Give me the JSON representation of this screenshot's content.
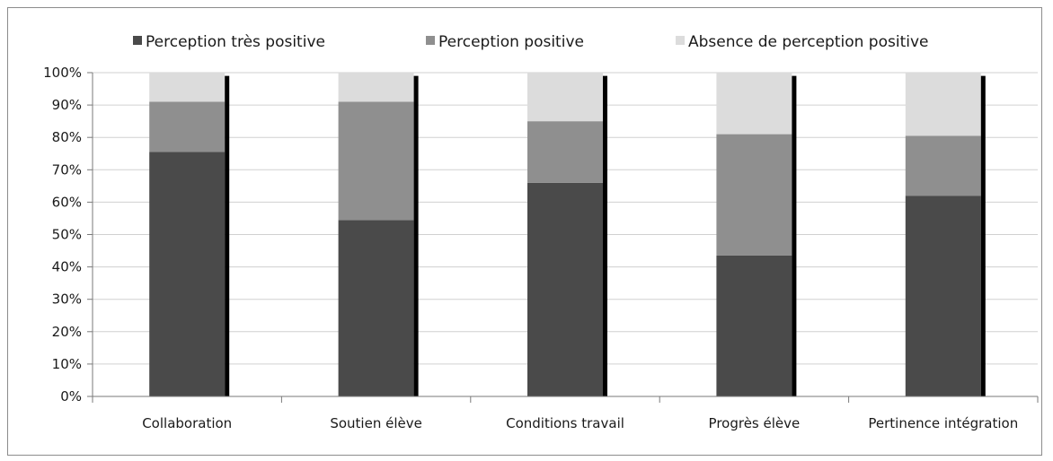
{
  "chart_data": {
    "type": "bar",
    "stacked": true,
    "percent": true,
    "categories": [
      "Collaboration",
      "Soutien élève",
      "Conditions travail",
      "Progrès élève",
      "Pertinence intégration"
    ],
    "series": [
      {
        "name": "Perception très positive",
        "color": "#4a4a4a",
        "values": [
          75.5,
          54.5,
          66.0,
          43.5,
          62.0
        ]
      },
      {
        "name": "Perception positive",
        "color": "#8f8f8f",
        "values": [
          15.5,
          36.5,
          19.0,
          37.5,
          18.5
        ]
      },
      {
        "name": "Absence de perception positive",
        "color": "#dcdcdc",
        "values": [
          9.0,
          9.0,
          15.0,
          19.0,
          19.5
        ]
      }
    ],
    "ylim": [
      0,
      100
    ],
    "yticks": [
      "0%",
      "10%",
      "20%",
      "30%",
      "40%",
      "50%",
      "60%",
      "70%",
      "80%",
      "90%",
      "100%"
    ],
    "grid": true,
    "legend_position": "top",
    "marker_color": "#000000"
  }
}
